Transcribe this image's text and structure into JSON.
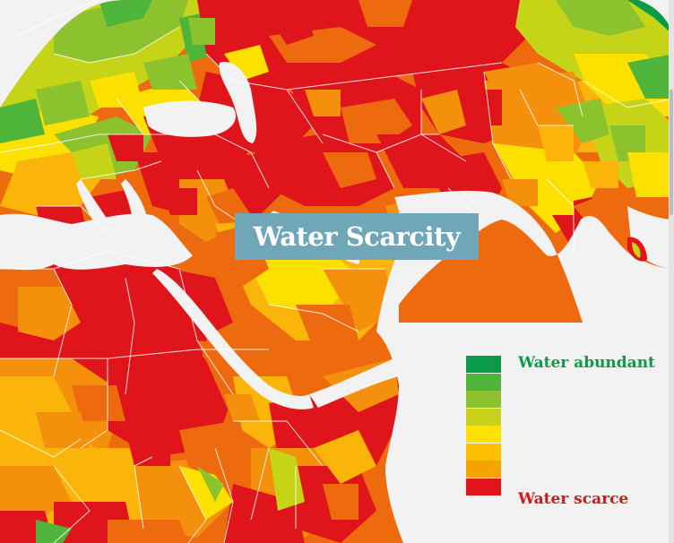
{
  "title": "Water Scarcity",
  "legend": {
    "top_label": "Water abundant",
    "bottom_label": "Water scarce",
    "top_color": "#0b9a4a",
    "bottom_color": "#d8161b",
    "scale_colors": [
      "#0b9a4a",
      "#4fb43a",
      "#8cc22e",
      "#c8d21a",
      "#ffe100",
      "#fcc000",
      "#f6a200",
      "#e0161b"
    ]
  },
  "palette": {
    "red": "#e0141b",
    "deep_orange": "#ee6a0e",
    "orange": "#f4900c",
    "amber": "#fab40a",
    "yellow": "#fce100",
    "lime": "#c6d418",
    "light_green": "#8cc22e",
    "green": "#4fb43a",
    "dark_green": "#0b9a4a",
    "water": "#f2f2f2",
    "border": "#ffffff"
  }
}
